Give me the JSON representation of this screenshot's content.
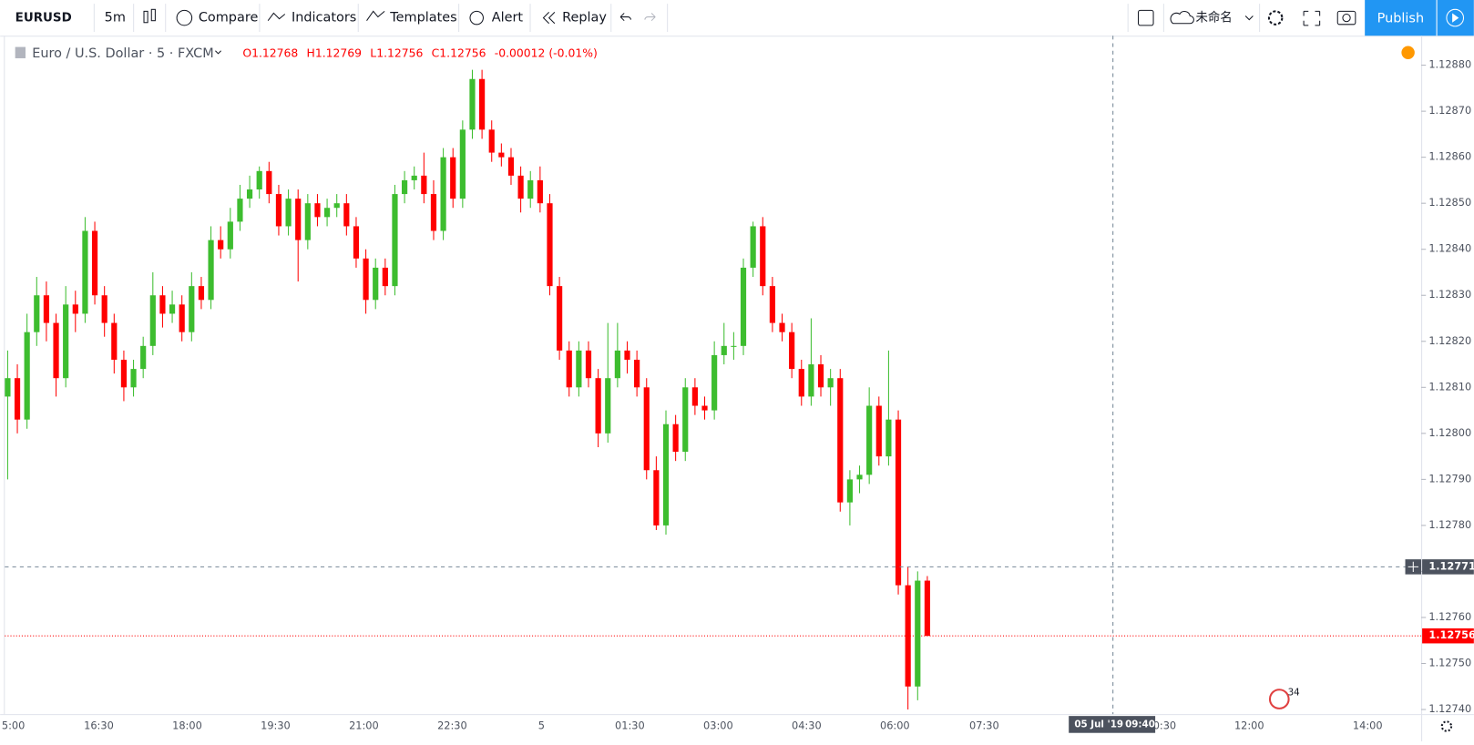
{
  "toolbar": {
    "symbol": "EURUSD",
    "interval": "5m",
    "compare": "Compare",
    "indicators": "Indicators",
    "templates": "Templates",
    "alert": "Alert",
    "replay": "Replay",
    "layout_name": "未命名",
    "publish": "Publish"
  },
  "chart_data": {
    "type": "candlestick",
    "title": "Euro / U.S. Dollar · 5 · FXCM",
    "legend": [
      "O1.12768",
      "H1.12769",
      "L1.12756",
      "C1.12756",
      "-0.00012 (-0.01%)"
    ],
    "up_color": "#3dbd2f",
    "down_color": "#ff0000",
    "values": [
      [
        1.12808,
        1.12818,
        1.1279,
        1.12812
      ],
      [
        1.12812,
        1.12815,
        1.128,
        1.12803
      ],
      [
        1.12803,
        1.12826,
        1.12801,
        1.12822
      ],
      [
        1.12822,
        1.12834,
        1.12819,
        1.1283
      ],
      [
        1.1283,
        1.12833,
        1.1282,
        1.12824
      ],
      [
        1.12824,
        1.12826,
        1.12808,
        1.12812
      ],
      [
        1.12812,
        1.12832,
        1.1281,
        1.12828
      ],
      [
        1.12828,
        1.12831,
        1.12822,
        1.12826
      ],
      [
        1.12826,
        1.12847,
        1.12824,
        1.12844
      ],
      [
        1.12844,
        1.12846,
        1.12828,
        1.1283
      ],
      [
        1.1283,
        1.12832,
        1.12821,
        1.12824
      ],
      [
        1.12824,
        1.12826,
        1.12813,
        1.12816
      ],
      [
        1.12816,
        1.12818,
        1.12807,
        1.1281
      ],
      [
        1.1281,
        1.12816,
        1.12808,
        1.12814
      ],
      [
        1.12814,
        1.12821,
        1.12812,
        1.12819
      ],
      [
        1.12819,
        1.12835,
        1.12817,
        1.1283
      ],
      [
        1.1283,
        1.12832,
        1.12823,
        1.12826
      ],
      [
        1.12826,
        1.12831,
        1.12824,
        1.12828
      ],
      [
        1.12828,
        1.1283,
        1.1282,
        1.12822
      ],
      [
        1.12822,
        1.12835,
        1.1282,
        1.12832
      ],
      [
        1.12832,
        1.12834,
        1.12827,
        1.12829
      ],
      [
        1.12829,
        1.12845,
        1.12827,
        1.12842
      ],
      [
        1.12842,
        1.12845,
        1.12838,
        1.1284
      ],
      [
        1.1284,
        1.12849,
        1.12838,
        1.12846
      ],
      [
        1.12846,
        1.12854,
        1.12844,
        1.12851
      ],
      [
        1.12851,
        1.12856,
        1.12849,
        1.12853
      ],
      [
        1.12853,
        1.12858,
        1.12851,
        1.12857
      ],
      [
        1.12857,
        1.12859,
        1.1285,
        1.12852
      ],
      [
        1.12852,
        1.12854,
        1.12843,
        1.12845
      ],
      [
        1.12845,
        1.12853,
        1.12843,
        1.12851
      ],
      [
        1.12851,
        1.12853,
        1.12833,
        1.12842
      ],
      [
        1.12842,
        1.12852,
        1.1284,
        1.1285
      ],
      [
        1.1285,
        1.12852,
        1.12845,
        1.12847
      ],
      [
        1.12847,
        1.12851,
        1.12845,
        1.12849
      ],
      [
        1.12849,
        1.12852,
        1.12847,
        1.1285
      ],
      [
        1.1285,
        1.12852,
        1.12843,
        1.12845
      ],
      [
        1.12845,
        1.12847,
        1.12836,
        1.12838
      ],
      [
        1.12838,
        1.1284,
        1.12826,
        1.12829
      ],
      [
        1.12829,
        1.12838,
        1.12827,
        1.12836
      ],
      [
        1.12836,
        1.12838,
        1.1283,
        1.12832
      ],
      [
        1.12832,
        1.12854,
        1.1283,
        1.12852
      ],
      [
        1.12852,
        1.12857,
        1.1285,
        1.12855
      ],
      [
        1.12855,
        1.12858,
        1.12853,
        1.12856
      ],
      [
        1.12856,
        1.12861,
        1.1285,
        1.12852
      ],
      [
        1.12852,
        1.12855,
        1.12842,
        1.12844
      ],
      [
        1.12844,
        1.12862,
        1.12842,
        1.1286
      ],
      [
        1.1286,
        1.12862,
        1.12849,
        1.12851
      ],
      [
        1.12851,
        1.12868,
        1.12849,
        1.12866
      ],
      [
        1.12866,
        1.12879,
        1.12864,
        1.12877
      ],
      [
        1.12877,
        1.12879,
        1.12864,
        1.12866
      ],
      [
        1.12866,
        1.12868,
        1.12859,
        1.12861
      ],
      [
        1.12861,
        1.12863,
        1.12858,
        1.1286
      ],
      [
        1.1286,
        1.12862,
        1.12854,
        1.12856
      ],
      [
        1.12856,
        1.12858,
        1.12848,
        1.12851
      ],
      [
        1.12851,
        1.12857,
        1.12849,
        1.12855
      ],
      [
        1.12855,
        1.12858,
        1.12848,
        1.1285
      ],
      [
        1.1285,
        1.12852,
        1.1283,
        1.12832
      ],
      [
        1.12832,
        1.12834,
        1.12816,
        1.12818
      ],
      [
        1.12818,
        1.1282,
        1.12808,
        1.1281
      ],
      [
        1.1281,
        1.1282,
        1.12808,
        1.12818
      ],
      [
        1.12818,
        1.1282,
        1.1281,
        1.12812
      ],
      [
        1.12812,
        1.12814,
        1.12797,
        1.128
      ],
      [
        1.128,
        1.12824,
        1.12798,
        1.12812
      ],
      [
        1.12812,
        1.12824,
        1.1281,
        1.12818
      ],
      [
        1.12818,
        1.1282,
        1.12813,
        1.12816
      ],
      [
        1.12816,
        1.12818,
        1.12808,
        1.1281
      ],
      [
        1.1281,
        1.12812,
        1.1279,
        1.12792
      ],
      [
        1.12792,
        1.12795,
        1.12779,
        1.1278
      ],
      [
        1.1278,
        1.12805,
        1.12778,
        1.12802
      ],
      [
        1.12802,
        1.12804,
        1.12794,
        1.12796
      ],
      [
        1.12796,
        1.12812,
        1.12794,
        1.1281
      ],
      [
        1.1281,
        1.12812,
        1.12804,
        1.12806
      ],
      [
        1.12806,
        1.12808,
        1.12803,
        1.12805
      ],
      [
        1.12805,
        1.1282,
        1.12803,
        1.12817
      ],
      [
        1.12817,
        1.12824,
        1.12815,
        1.12819
      ],
      [
        1.12819,
        1.12822,
        1.12816,
        1.12819
      ],
      [
        1.12819,
        1.12838,
        1.12817,
        1.12836
      ],
      [
        1.12836,
        1.12846,
        1.12834,
        1.12845
      ],
      [
        1.12845,
        1.12847,
        1.1283,
        1.12832
      ],
      [
        1.12832,
        1.12834,
        1.12822,
        1.12824
      ],
      [
        1.12824,
        1.12826,
        1.1282,
        1.12822
      ],
      [
        1.12822,
        1.12824,
        1.12812,
        1.12814
      ],
      [
        1.12814,
        1.12816,
        1.12806,
        1.12808
      ],
      [
        1.12808,
        1.12825,
        1.12806,
        1.12815
      ],
      [
        1.12815,
        1.12817,
        1.12808,
        1.1281
      ],
      [
        1.1281,
        1.12814,
        1.12806,
        1.12812
      ],
      [
        1.12812,
        1.12814,
        1.12783,
        1.12785
      ],
      [
        1.12785,
        1.12792,
        1.1278,
        1.1279
      ],
      [
        1.1279,
        1.12793,
        1.12787,
        1.12791
      ],
      [
        1.12791,
        1.1281,
        1.12789,
        1.12806
      ],
      [
        1.12806,
        1.12808,
        1.12793,
        1.12795
      ],
      [
        1.12795,
        1.12818,
        1.12793,
        1.12803
      ],
      [
        1.12803,
        1.12805,
        1.12765,
        1.12767
      ],
      [
        1.12767,
        1.12771,
        1.1274,
        1.12745
      ],
      [
        1.12745,
        1.1277,
        1.12742,
        1.12768
      ],
      [
        1.12768,
        1.12769,
        1.12756,
        1.12756
      ]
    ],
    "x_labels": [
      "5:00",
      "16:30",
      "18:00",
      "19:30",
      "21:00",
      "22:30",
      "5",
      "01:30",
      "03:00",
      "04:30",
      "06:00",
      "07:30",
      "0:30",
      "12:00",
      "14:00"
    ],
    "ylim": [
      1.12739,
      1.12886
    ],
    "yticks": [
      {
        "value": 1.1274,
        "label": "1.12740"
      },
      {
        "value": 1.1275,
        "label": "1.12750"
      },
      {
        "value": 1.1276,
        "label": "1.12760"
      },
      {
        "value": 1.1277,
        "label": "1.12770"
      },
      {
        "value": 1.1278,
        "label": "1.12780"
      },
      {
        "value": 1.1279,
        "label": "1.12790"
      },
      {
        "value": 1.128,
        "label": "1.12800"
      },
      {
        "value": 1.1281,
        "label": "1.12810"
      },
      {
        "value": 1.1282,
        "label": "1.12820"
      },
      {
        "value": 1.1283,
        "label": "1.12830"
      },
      {
        "value": 1.1284,
        "label": "1.12840"
      },
      {
        "value": 1.1285,
        "label": "1.12850"
      },
      {
        "value": 1.1286,
        "label": "1.12860"
      },
      {
        "value": 1.1287,
        "label": "1.12870"
      },
      {
        "value": 1.1288,
        "label": "1.12880"
      }
    ],
    "last_price": 1.12756,
    "crosshair": {
      "price": 1.12771,
      "date": "05 Jul '19",
      "time": "09:40"
    },
    "events_badge": "34"
  }
}
